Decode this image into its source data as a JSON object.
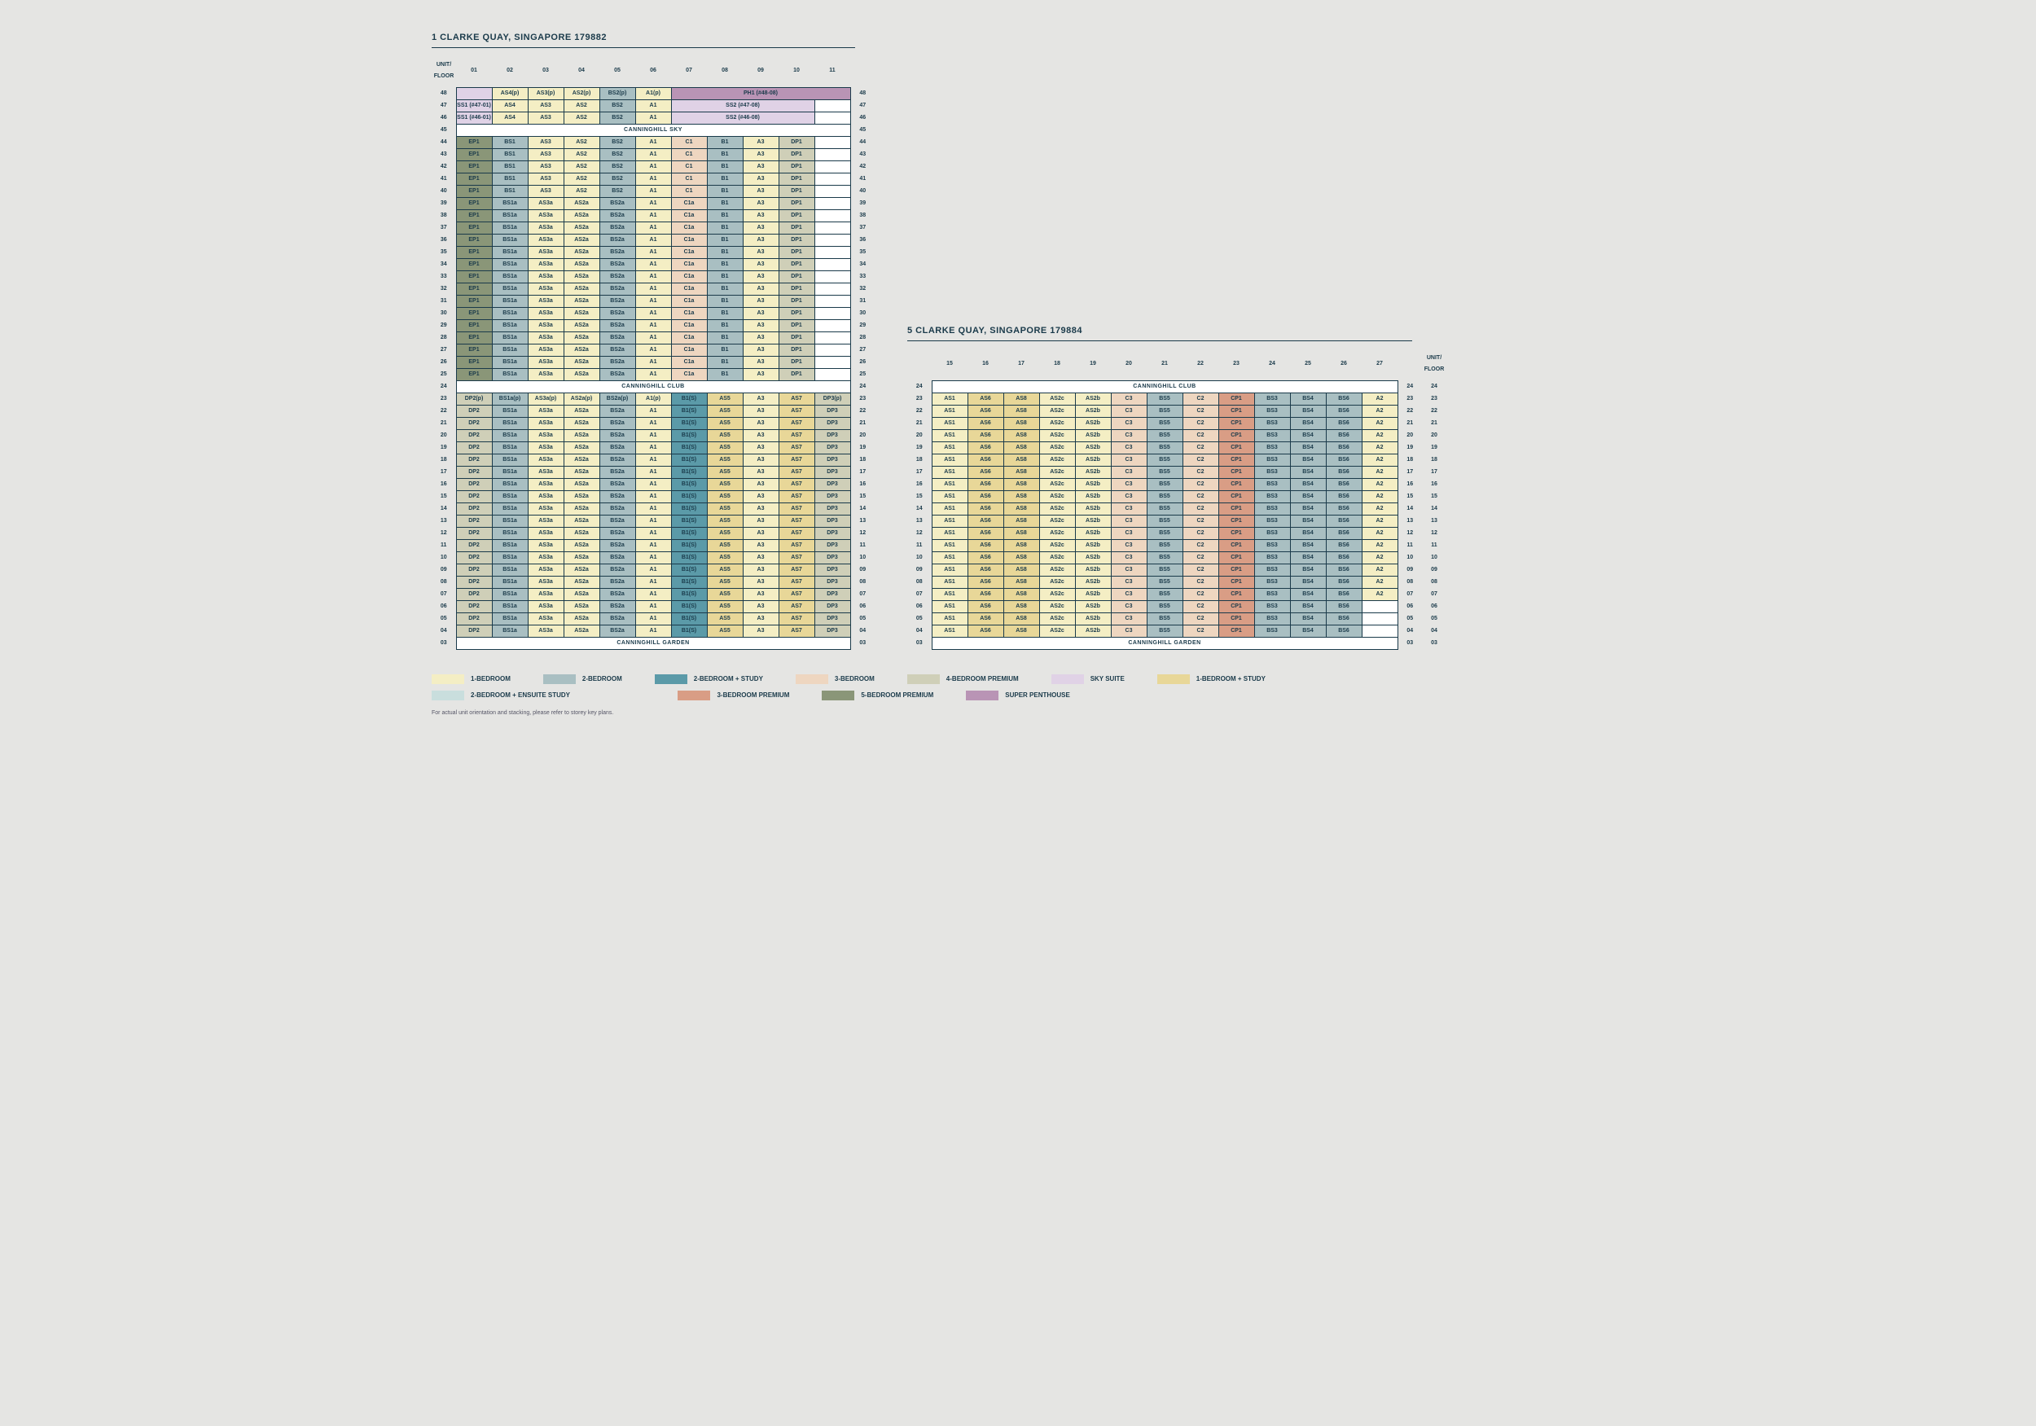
{
  "tower1": {
    "address": "1 CLARKE QUAY, SINGAPORE 179882",
    "unitFloorLabel": "UNIT/\nFLOOR",
    "cols": [
      "01",
      "02",
      "03",
      "04",
      "05",
      "06",
      "07",
      "08",
      "09",
      "10",
      "11"
    ],
    "sections": {
      "sky": "CANNINGHILL SKY",
      "club": "CANNINGHILL CLUB",
      "garden": "CANNINGHILL GARDEN"
    },
    "row48": {
      "fl": "48",
      "cells": [
        {
          "t": "",
          "c": "ss"
        },
        {
          "t": "AS4(p)",
          "c": "a1"
        },
        {
          "t": "AS3(p)",
          "c": "a1"
        },
        {
          "t": "AS2(p)",
          "c": "a1"
        },
        {
          "t": "BS2(p)",
          "c": "b2"
        },
        {
          "t": "A1(p)",
          "c": "a1"
        },
        {
          "t": "PH1 (#48-08)",
          "c": "sp",
          "span": 5
        }
      ]
    },
    "row47": {
      "fl": "47",
      "cells": [
        {
          "t": "SS1 (#47-01)",
          "c": "ss"
        },
        {
          "t": "AS4",
          "c": "a1"
        },
        {
          "t": "AS3",
          "c": "a1"
        },
        {
          "t": "AS2",
          "c": "a1"
        },
        {
          "t": "BS2",
          "c": "b2"
        },
        {
          "t": "A1",
          "c": "a1"
        },
        {
          "t": "SS2 (#47-08)",
          "c": "ss",
          "span": 4
        },
        {
          "t": "",
          "c": "blank"
        }
      ]
    },
    "row46": {
      "fl": "46",
      "cells": [
        {
          "t": "SS1 (#46-01)",
          "c": "ss"
        },
        {
          "t": "AS4",
          "c": "a1"
        },
        {
          "t": "AS3",
          "c": "a1"
        },
        {
          "t": "AS2",
          "c": "a1"
        },
        {
          "t": "BS2",
          "c": "b2"
        },
        {
          "t": "A1",
          "c": "a1"
        },
        {
          "t": "SS2 (#46-08)",
          "c": "ss",
          "span": 4
        },
        {
          "t": "",
          "c": "blank"
        }
      ]
    },
    "blockA": {
      "floors": [
        "44",
        "43",
        "42",
        "41",
        "40"
      ],
      "cells": [
        {
          "t": "EP1",
          "c": "b5p"
        },
        {
          "t": "BS1",
          "c": "b2"
        },
        {
          "t": "AS3",
          "c": "a1"
        },
        {
          "t": "AS2",
          "c": "a1"
        },
        {
          "t": "BS2",
          "c": "b2"
        },
        {
          "t": "A1",
          "c": "a1"
        },
        {
          "t": "C1",
          "c": "b3"
        },
        {
          "t": "B1",
          "c": "b2"
        },
        {
          "t": "A3",
          "c": "a1"
        },
        {
          "t": "DP1",
          "c": "b4p"
        }
      ]
    },
    "blockB": {
      "floors": [
        "39",
        "38",
        "37",
        "36",
        "35",
        "34",
        "33",
        "32",
        "31",
        "30",
        "29",
        "28",
        "27",
        "26",
        "25"
      ],
      "cells": [
        {
          "t": "EP1",
          "c": "b5p"
        },
        {
          "t": "BS1a",
          "c": "b2"
        },
        {
          "t": "AS3a",
          "c": "a1"
        },
        {
          "t": "AS2a",
          "c": "a1"
        },
        {
          "t": "BS2a",
          "c": "b2"
        },
        {
          "t": "A1",
          "c": "a1"
        },
        {
          "t": "C1a",
          "c": "b3"
        },
        {
          "t": "B1",
          "c": "b2"
        },
        {
          "t": "A3",
          "c": "a1"
        },
        {
          "t": "DP1",
          "c": "b4p"
        }
      ]
    },
    "row23": {
      "fl": "23",
      "cells": [
        {
          "t": "DP2(p)",
          "c": "b4p"
        },
        {
          "t": "BS1a(p)",
          "c": "b2"
        },
        {
          "t": "AS3a(p)",
          "c": "a1"
        },
        {
          "t": "AS2a(p)",
          "c": "a1"
        },
        {
          "t": "BS2a(p)",
          "c": "b2"
        },
        {
          "t": "A1(p)",
          "c": "a1"
        },
        {
          "t": "B1(S)",
          "c": "b2s"
        },
        {
          "t": "AS5",
          "c": "a1s"
        },
        {
          "t": "A3",
          "c": "a1"
        },
        {
          "t": "AS7",
          "c": "a1s"
        },
        {
          "t": "DP3(p)",
          "c": "b4p"
        }
      ]
    },
    "blockC": {
      "floors": [
        "22",
        "21",
        "20",
        "19",
        "18",
        "17",
        "16",
        "15",
        "14",
        "13",
        "12",
        "11",
        "10",
        "09",
        "08",
        "07",
        "06",
        "05",
        "04"
      ],
      "cells": [
        {
          "t": "DP2",
          "c": "b4p"
        },
        {
          "t": "BS1a",
          "c": "b2"
        },
        {
          "t": "AS3a",
          "c": "a1"
        },
        {
          "t": "AS2a",
          "c": "a1"
        },
        {
          "t": "BS2a",
          "c": "b2"
        },
        {
          "t": "A1",
          "c": "a1"
        },
        {
          "t": "B1(S)",
          "c": "b2s"
        },
        {
          "t": "AS5",
          "c": "a1s"
        },
        {
          "t": "A3",
          "c": "a1"
        },
        {
          "t": "AS7",
          "c": "a1s"
        },
        {
          "t": "DP3",
          "c": "b4p"
        }
      ]
    },
    "row45": "45",
    "row24": "24",
    "row03": "03"
  },
  "tower2": {
    "address": "5 CLARKE QUAY, SINGAPORE 179884",
    "cols": [
      "15",
      "16",
      "17",
      "18",
      "19",
      "20",
      "21",
      "22",
      "23",
      "24",
      "25",
      "26",
      "27"
    ],
    "sections": {
      "club": "CANNINGHILL CLUB",
      "garden": "CANNINGHILL GARDEN"
    },
    "blockC27": {
      "floors": [
        "23",
        "22",
        "21",
        "20",
        "19",
        "18",
        "17",
        "16",
        "15",
        "14",
        "13",
        "12",
        "11",
        "10",
        "09",
        "08",
        "07"
      ],
      "cells": [
        {
          "t": "AS1",
          "c": "a1"
        },
        {
          "t": "AS6",
          "c": "a1s"
        },
        {
          "t": "AS8",
          "c": "a1s"
        },
        {
          "t": "AS2c",
          "c": "a1"
        },
        {
          "t": "AS2b",
          "c": "a1"
        },
        {
          "t": "C3",
          "c": "b3"
        },
        {
          "t": "BS5",
          "c": "b2"
        },
        {
          "t": "C2",
          "c": "b3"
        },
        {
          "t": "CP1",
          "c": "b3p"
        },
        {
          "t": "BS3",
          "c": "b2"
        },
        {
          "t": "BS4",
          "c": "b2"
        },
        {
          "t": "BS6",
          "c": "b2"
        },
        {
          "t": "A2",
          "c": "a1"
        }
      ]
    },
    "blockC26": {
      "floors": [
        "06",
        "05",
        "04"
      ],
      "cells": [
        {
          "t": "AS1",
          "c": "a1"
        },
        {
          "t": "AS6",
          "c": "a1s"
        },
        {
          "t": "AS8",
          "c": "a1s"
        },
        {
          "t": "AS2c",
          "c": "a1"
        },
        {
          "t": "AS2b",
          "c": "a1"
        },
        {
          "t": "C3",
          "c": "b3"
        },
        {
          "t": "BS5",
          "c": "b2"
        },
        {
          "t": "C2",
          "c": "b3"
        },
        {
          "t": "CP1",
          "c": "b3p"
        },
        {
          "t": "BS3",
          "c": "b2"
        },
        {
          "t": "BS4",
          "c": "b2"
        },
        {
          "t": "BS6",
          "c": "b2"
        }
      ]
    },
    "row24": "24",
    "row03": "03"
  },
  "colors": {
    "a1": "#f4eec4",
    "a1s": "#e8d798",
    "b2": "#a9bfc2",
    "b2es": "#c9dedd",
    "b2s": "#5b9aa8",
    "b3": "#eed6c0",
    "b3p": "#d99d85",
    "b4p": "#cfcfb8",
    "ss": "#e0d2e6",
    "b5p": "#8a9678",
    "sp": "#b994b5",
    "blank": "#ffffff",
    "section": "#ffffff"
  },
  "legend": [
    {
      "c": "a1",
      "t": "1-BEDROOM"
    },
    {
      "c": "b2",
      "t": "2-BEDROOM"
    },
    {
      "c": "b2s",
      "t": "2-BEDROOM + STUDY"
    },
    {
      "c": "b3",
      "t": "3-BEDROOM"
    },
    {
      "c": "b4p",
      "t": "4-BEDROOM PREMIUM"
    },
    {
      "c": "ss",
      "t": "SKY SUITE"
    },
    {
      "c": "a1s",
      "t": "1-BEDROOM + STUDY"
    },
    {
      "c": "b2es",
      "t": "2-BEDROOM + ENSUITE STUDY"
    },
    {
      "c": "blank",
      "t": ""
    },
    {
      "c": "b3p",
      "t": "3-BEDROOM PREMIUM"
    },
    {
      "c": "b5p",
      "t": "5-BEDROOM PREMIUM"
    },
    {
      "c": "sp",
      "t": "SUPER PENTHOUSE"
    }
  ],
  "footnote": "For actual unit orientation and stacking, please refer to storey key plans."
}
